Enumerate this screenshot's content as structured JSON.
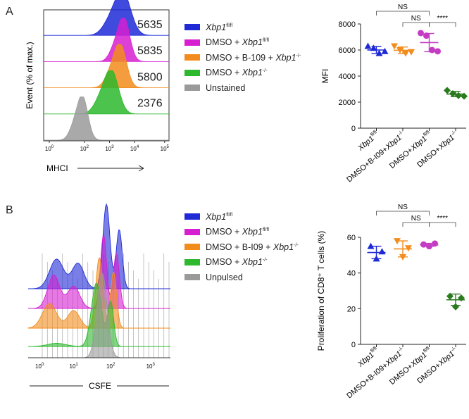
{
  "panels": {
    "A": {
      "label": "A",
      "colors": [
        "#1f2ad6",
        "#d61fd0",
        "#f28c1c",
        "#2db82d",
        "#9a9a9a"
      ],
      "legend": [
        {
          "prefix": "",
          "gene": "Xbp1",
          "sup": "fl/fl"
        },
        {
          "prefix": "DMSO + ",
          "gene": "Xbp1",
          "sup": "fl/fl"
        },
        {
          "prefix": "DMSO + B-109 + ",
          "gene": "Xbp1",
          "sup": "-/-"
        },
        {
          "prefix": "DMSO + ",
          "gene": "Xbp1",
          "sup": "-/-"
        },
        {
          "prefix": "Unstained",
          "gene": "",
          "sup": ""
        }
      ],
      "histogram": {
        "ylabel": "Event (% of max.)",
        "xlabel": "MHCI",
        "x_ticks": [
          "10",
          "10",
          "10",
          "10",
          "10"
        ],
        "x_tick_exps": [
          "0",
          "2",
          "3",
          "4",
          "5"
        ],
        "values": [
          "5635",
          "5835",
          "5800",
          "2376"
        ]
      }
    },
    "B": {
      "label": "B",
      "colors": [
        "#1f2ad6",
        "#d61fd0",
        "#f28c1c",
        "#2db82d",
        "#9a9a9a"
      ],
      "legend": [
        {
          "prefix": "",
          "gene": "Xbp1",
          "sup": "fl/fl"
        },
        {
          "prefix": "DMSO + ",
          "gene": "Xbp1",
          "sup": "fl/fl"
        },
        {
          "prefix": "DMSO + B-I09 + ",
          "gene": "Xbp1",
          "sup": "-/-"
        },
        {
          "prefix": "DMSO + ",
          "gene": "Xbp1",
          "sup": "-/-"
        },
        {
          "prefix": "Unpulsed",
          "gene": "",
          "sup": ""
        }
      ],
      "histogram": {
        "xlabel": "CSFE",
        "x_ticks": [
          "10",
          "10",
          "10",
          "10"
        ],
        "x_tick_exps": [
          "0",
          "1",
          "2",
          "3"
        ]
      }
    }
  },
  "chart_data": [
    {
      "type": "scatter",
      "panel": "A",
      "ylabel": "MFI",
      "ylim": [
        0,
        8000
      ],
      "y_ticks": [
        0,
        2000,
        4000,
        6000,
        8000
      ],
      "categories": [
        {
          "prefix": "",
          "gene": "Xbp1",
          "sup": "fl/fl"
        },
        {
          "prefix": "DMSO+B-I09+",
          "gene": "Xbp1",
          "sup": "-/-"
        },
        {
          "prefix": "DMSO+",
          "gene": "Xbp1",
          "sup": "fl/fl"
        },
        {
          "prefix": "DMSO+",
          "gene": "Xbp1",
          "sup": "-/-"
        }
      ],
      "series": [
        {
          "marker": "triangle",
          "color": "#1f2ad6",
          "points": [
            6300,
            6150,
            5750,
            5900
          ],
          "mean": 6000,
          "sd": 270
        },
        {
          "marker": "inverted-triangle",
          "color": "#f28c1c",
          "points": [
            6300,
            6000,
            5750,
            5850
          ],
          "mean": 5980,
          "sd": 250
        },
        {
          "marker": "circle",
          "color": "#c43cc4",
          "points": [
            7300,
            7100,
            6000,
            5900
          ],
          "mean": 6570,
          "sd": 700
        },
        {
          "marker": "diamond",
          "color": "#2a7a1e",
          "points": [
            2900,
            2650,
            2500,
            2450
          ],
          "mean": 2620,
          "sd": 200
        }
      ],
      "comparisons": [
        {
          "from": 0,
          "to": 2,
          "label": "NS"
        },
        {
          "from": 1,
          "to": 2,
          "label": "NS"
        },
        {
          "from": 2,
          "to": 3,
          "label": "****"
        }
      ]
    },
    {
      "type": "scatter",
      "panel": "B",
      "ylabel": "Proliferation of CD8⁺ T cells (%)",
      "ylim": [
        0,
        60
      ],
      "y_ticks": [
        0,
        20,
        40,
        60
      ],
      "categories": [
        {
          "prefix": "",
          "gene": "Xbp1",
          "sup": "fl/fl"
        },
        {
          "prefix": "DMSO+B-I09+",
          "gene": "Xbp1",
          "sup": "-/-"
        },
        {
          "prefix": "DMSO+",
          "gene": "Xbp1",
          "sup": "fl/fl"
        },
        {
          "prefix": "DMSO+",
          "gene": "Xbp1",
          "sup": "-/-"
        }
      ],
      "series": [
        {
          "marker": "triangle",
          "color": "#1f2ad6",
          "points": [
            55,
            48,
            52
          ],
          "mean": 51.5,
          "sd": 3.5
        },
        {
          "marker": "inverted-triangle",
          "color": "#f28c1c",
          "points": [
            58,
            49,
            54
          ],
          "mean": 53.5,
          "sd": 4.5
        },
        {
          "marker": "circle",
          "color": "#c43cc4",
          "points": [
            56,
            55,
            56.5
          ],
          "mean": 55.8,
          "sd": 0.8
        },
        {
          "marker": "diamond",
          "color": "#2a7a1e",
          "points": [
            27,
            21,
            26
          ],
          "mean": 25,
          "sd": 3.2
        }
      ],
      "comparisons": [
        {
          "from": 0,
          "to": 2,
          "label": "NS"
        },
        {
          "from": 1,
          "to": 2,
          "label": "NS"
        },
        {
          "from": 2,
          "to": 3,
          "label": "****"
        }
      ]
    }
  ]
}
